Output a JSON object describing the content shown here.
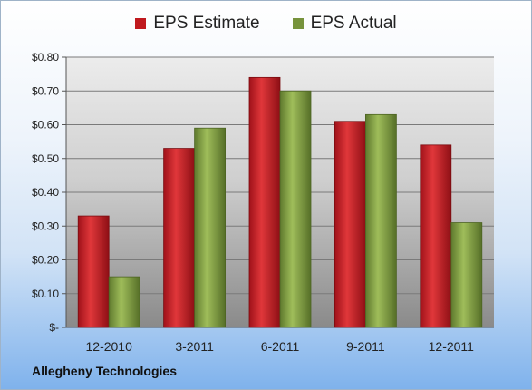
{
  "company": "Allegheny Technologies",
  "chart_data": {
    "type": "bar",
    "categories": [
      "12-2010",
      "3-2011",
      "6-2011",
      "9-2011",
      "12-2011"
    ],
    "series": [
      {
        "name": "EPS Estimate",
        "color": "#c0191e",
        "values": [
          0.33,
          0.53,
          0.74,
          0.61,
          0.54
        ]
      },
      {
        "name": "EPS Actual",
        "color": "#77933c",
        "values": [
          0.15,
          0.59,
          0.7,
          0.63,
          0.31
        ]
      }
    ],
    "ylim": [
      0,
      0.8
    ],
    "yticks": [
      0,
      0.1,
      0.2,
      0.3,
      0.4,
      0.5,
      0.6,
      0.7,
      0.8
    ],
    "ytick_labels": [
      "$-",
      "$0.10",
      "$0.20",
      "$0.30",
      "$0.40",
      "$0.50",
      "$0.60",
      "$0.70",
      "$0.80"
    ],
    "grid": true,
    "legend": "top"
  }
}
